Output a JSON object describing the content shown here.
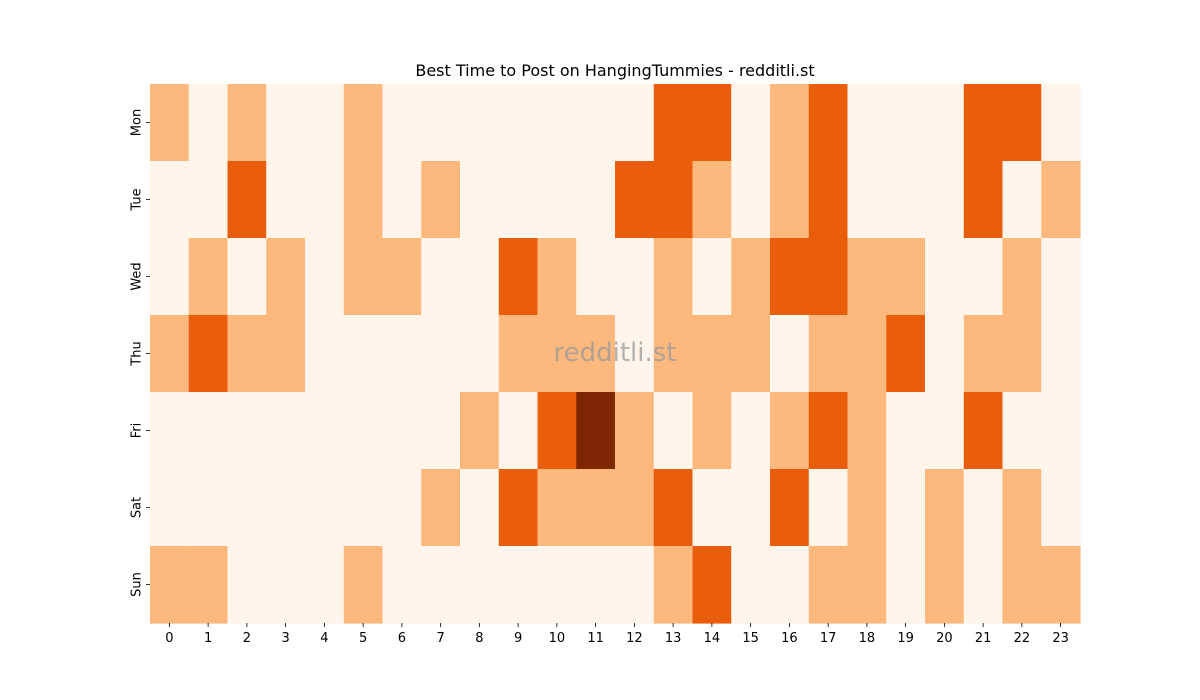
{
  "chart_data": {
    "type": "heatmap",
    "title": "Best Time to Post on HangingTummies - redditli.st",
    "xlabel": "",
    "ylabel": "",
    "x": [
      "0",
      "1",
      "2",
      "3",
      "4",
      "5",
      "6",
      "7",
      "8",
      "9",
      "10",
      "11",
      "12",
      "13",
      "14",
      "15",
      "16",
      "17",
      "18",
      "19",
      "20",
      "21",
      "22",
      "23"
    ],
    "y": [
      "Mon",
      "Tue",
      "Wed",
      "Thu",
      "Fri",
      "Sat",
      "Sun"
    ],
    "values": [
      [
        1,
        0,
        1,
        0,
        0,
        1,
        0,
        0,
        0,
        0,
        0,
        0,
        0,
        2,
        2,
        0,
        1,
        2,
        0,
        0,
        0,
        2,
        2,
        0
      ],
      [
        0,
        0,
        2,
        0,
        0,
        1,
        0,
        1,
        0,
        0,
        0,
        0,
        2,
        2,
        1,
        0,
        1,
        2,
        0,
        0,
        0,
        2,
        0,
        1
      ],
      [
        0,
        1,
        0,
        1,
        0,
        1,
        1,
        0,
        0,
        2,
        1,
        0,
        0,
        1,
        0,
        1,
        2,
        2,
        1,
        1,
        0,
        0,
        1,
        0
      ],
      [
        1,
        2,
        1,
        1,
        0,
        0,
        0,
        0,
        0,
        1,
        1,
        1,
        0,
        1,
        1,
        1,
        0,
        1,
        1,
        2,
        0,
        1,
        1,
        0
      ],
      [
        0,
        0,
        0,
        0,
        0,
        0,
        0,
        0,
        1,
        0,
        2,
        3,
        1,
        0,
        1,
        0,
        1,
        2,
        1,
        0,
        0,
        2,
        0,
        0
      ],
      [
        0,
        0,
        0,
        0,
        0,
        0,
        0,
        1,
        0,
        2,
        1,
        1,
        1,
        2,
        0,
        0,
        2,
        0,
        1,
        0,
        1,
        0,
        1,
        0
      ],
      [
        1,
        1,
        0,
        0,
        0,
        1,
        0,
        0,
        0,
        0,
        0,
        0,
        0,
        1,
        2,
        0,
        0,
        1,
        1,
        0,
        1,
        0,
        1,
        1
      ]
    ],
    "colorscale": [
      "#fff5eb",
      "#fdb97d",
      "#e95e0d",
      "#7f2704"
    ],
    "colorbar": false,
    "watermark": "redditli.st"
  }
}
